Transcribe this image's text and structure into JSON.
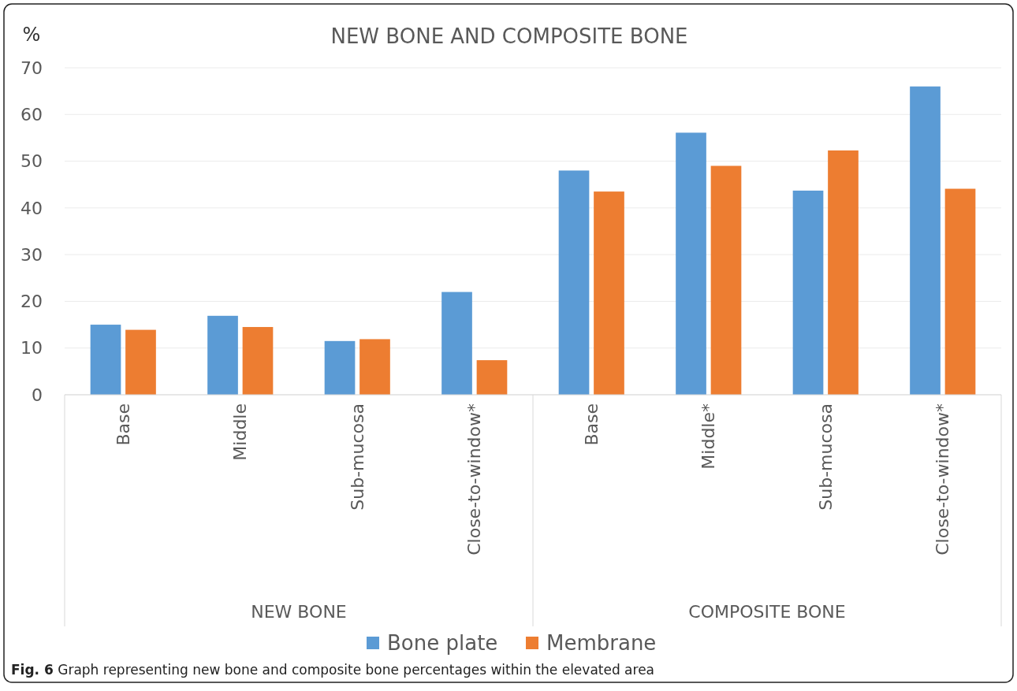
{
  "chart_data": {
    "type": "bar",
    "title": "NEW BONE AND COMPOSITE BONE",
    "ylabel": "%",
    "categories": [
      "Base",
      "Middle",
      "Sub-mucosa",
      "Close-to-window*",
      "Base",
      "Middle*",
      "Sub-mucosa",
      "Close-to-window*"
    ],
    "series": [
      {
        "name": "Bone plate",
        "color": "#5b9bd5",
        "values": [
          15.0,
          16.9,
          11.5,
          22.0,
          48.0,
          56.1,
          43.7,
          66.0
        ]
      },
      {
        "name": "Membrane",
        "color": "#ed7d31",
        "values": [
          13.9,
          14.5,
          11.9,
          7.4,
          43.5,
          49.0,
          52.3,
          44.1
        ]
      }
    ],
    "ylim": [
      0,
      70
    ],
    "yticks": [
      0,
      10,
      20,
      30,
      40,
      50,
      60,
      70
    ],
    "grid": "y",
    "legend": "bottom",
    "annotations": [
      "NEW BONE",
      "COMPOSITE BONE",
      "Fig. 6 Graph representing new bone and composite bone percentages within the elevated area"
    ]
  }
}
